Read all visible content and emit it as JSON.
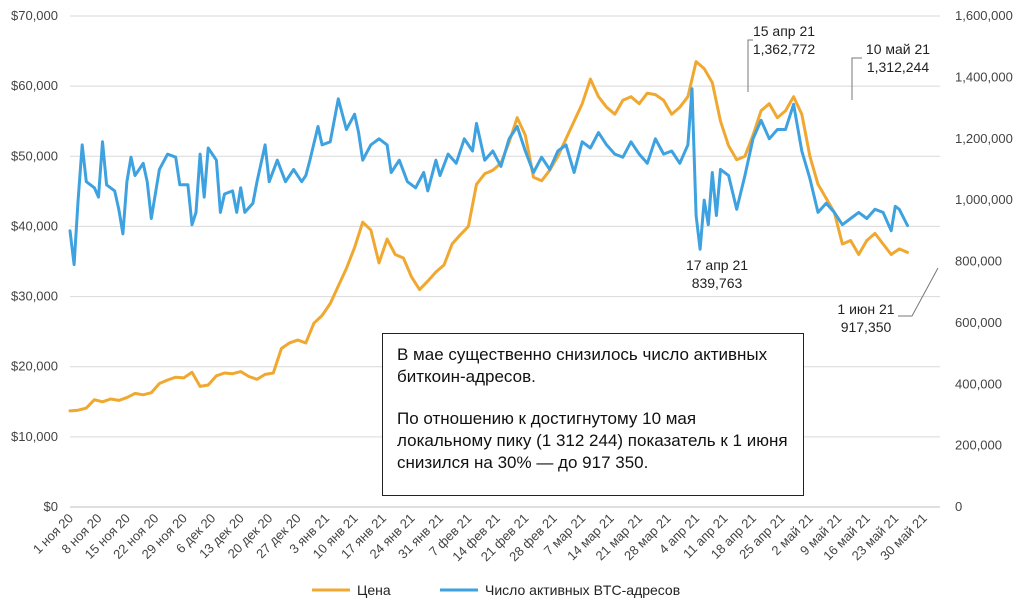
{
  "chart_data": {
    "type": "line",
    "title": "",
    "left_axis": {
      "ylim": [
        0,
        70000
      ],
      "ticks": [
        0,
        10000,
        20000,
        30000,
        40000,
        50000,
        60000,
        70000
      ],
      "tick_labels": [
        "$0",
        "$10,000",
        "$20,000",
        "$30,000",
        "$40,000",
        "$50,000",
        "$60,000",
        "$70,000"
      ]
    },
    "right_axis": {
      "ylim": [
        0,
        1600000
      ],
      "ticks": [
        0,
        200000,
        400000,
        600000,
        800000,
        1000000,
        1200000,
        1400000,
        1600000
      ],
      "tick_labels": [
        "0",
        "200,000",
        "400,000",
        "600,000",
        "800,000",
        "1,000,000",
        "1,200,000",
        "1,400,000",
        "1,600,000"
      ]
    },
    "x_tick_labels": [
      "1 ноя 20",
      "8 ноя 20",
      "15 ноя 20",
      "22 ноя 20",
      "29 ноя 20",
      "6 дек 20",
      "13 дек 20",
      "20 дек 20",
      "27 дек 20",
      "3 янв 21",
      "10 янв 21",
      "17 янв 21",
      "24 янв 21",
      "31 янв 21",
      "7 фев 21",
      "14 фев 21",
      "21 фев 21",
      "28 фев 21",
      "7 мар 21",
      "14 мар 21",
      "21 мар 21",
      "28 мар 21",
      "4 апр 21",
      "11 апр 21",
      "18 апр 21",
      "25 апр 21",
      "2 май 21",
      "9 май 21",
      "16 май 21",
      "23 май 21",
      "30 май 21"
    ],
    "day_step": 7,
    "series": [
      {
        "name": "Цена",
        "axis": "left",
        "color": "#F0A830",
        "points": [
          [
            0,
            13700
          ],
          [
            2,
            13800
          ],
          [
            4,
            14100
          ],
          [
            6,
            15300
          ],
          [
            8,
            15000
          ],
          [
            10,
            15400
          ],
          [
            12,
            15200
          ],
          [
            14,
            15600
          ],
          [
            16,
            16200
          ],
          [
            18,
            16000
          ],
          [
            20,
            16300
          ],
          [
            22,
            17600
          ],
          [
            24,
            18100
          ],
          [
            26,
            18500
          ],
          [
            28,
            18400
          ],
          [
            30,
            19200
          ],
          [
            32,
            17200
          ],
          [
            34,
            17400
          ],
          [
            36,
            18700
          ],
          [
            38,
            19100
          ],
          [
            40,
            19000
          ],
          [
            42,
            19300
          ],
          [
            44,
            18600
          ],
          [
            46,
            18200
          ],
          [
            48,
            18900
          ],
          [
            50,
            19100
          ],
          [
            52,
            22600
          ],
          [
            54,
            23400
          ],
          [
            56,
            23800
          ],
          [
            58,
            23400
          ],
          [
            60,
            26200
          ],
          [
            62,
            27300
          ],
          [
            64,
            29000
          ],
          [
            66,
            31500
          ],
          [
            68,
            34000
          ],
          [
            70,
            37000
          ],
          [
            72,
            40600
          ],
          [
            74,
            39500
          ],
          [
            76,
            34800
          ],
          [
            78,
            38200
          ],
          [
            80,
            36000
          ],
          [
            82,
            35500
          ],
          [
            84,
            32800
          ],
          [
            86,
            31000
          ],
          [
            88,
            32200
          ],
          [
            90,
            33500
          ],
          [
            92,
            34500
          ],
          [
            94,
            37500
          ],
          [
            96,
            38800
          ],
          [
            98,
            40000
          ],
          [
            100,
            46000
          ],
          [
            102,
            47500
          ],
          [
            104,
            48000
          ],
          [
            106,
            49000
          ],
          [
            108,
            52000
          ],
          [
            110,
            55500
          ],
          [
            112,
            53000
          ],
          [
            114,
            47000
          ],
          [
            116,
            46500
          ],
          [
            118,
            48000
          ],
          [
            120,
            50000
          ],
          [
            122,
            52500
          ],
          [
            124,
            55000
          ],
          [
            126,
            57500
          ],
          [
            128,
            61000
          ],
          [
            130,
            58500
          ],
          [
            132,
            57000
          ],
          [
            134,
            56000
          ],
          [
            136,
            58000
          ],
          [
            138,
            58500
          ],
          [
            140,
            57500
          ],
          [
            142,
            59000
          ],
          [
            144,
            58800
          ],
          [
            146,
            58000
          ],
          [
            148,
            56000
          ],
          [
            150,
            57000
          ],
          [
            152,
            58500
          ],
          [
            154,
            63500
          ],
          [
            156,
            62500
          ],
          [
            158,
            60500
          ],
          [
            160,
            55000
          ],
          [
            162,
            51500
          ],
          [
            164,
            49500
          ],
          [
            166,
            50000
          ],
          [
            168,
            53000
          ],
          [
            170,
            56500
          ],
          [
            172,
            57500
          ],
          [
            174,
            55500
          ],
          [
            176,
            56500
          ],
          [
            178,
            58500
          ],
          [
            180,
            56000
          ],
          [
            182,
            50000
          ],
          [
            184,
            46000
          ],
          [
            186,
            44000
          ],
          [
            188,
            42000
          ],
          [
            190,
            37500
          ],
          [
            192,
            38000
          ],
          [
            194,
            36000
          ],
          [
            196,
            38000
          ],
          [
            198,
            39000
          ],
          [
            200,
            37500
          ],
          [
            202,
            36000
          ],
          [
            204,
            36800
          ],
          [
            206,
            36300
          ]
        ]
      },
      {
        "name": "Число активных BTC-адресов",
        "axis": "right",
        "color": "#3EA2E0",
        "points": [
          [
            0,
            900000
          ],
          [
            1,
            790000
          ],
          [
            2,
            1000000
          ],
          [
            3,
            1180000
          ],
          [
            4,
            1060000
          ],
          [
            6,
            1040000
          ],
          [
            7,
            1010000
          ],
          [
            8,
            1190000
          ],
          [
            9,
            1050000
          ],
          [
            11,
            1030000
          ],
          [
            12,
            970000
          ],
          [
            13,
            890000
          ],
          [
            14,
            1060000
          ],
          [
            15,
            1140000
          ],
          [
            16,
            1080000
          ],
          [
            18,
            1120000
          ],
          [
            19,
            1060000
          ],
          [
            20,
            940000
          ],
          [
            22,
            1100000
          ],
          [
            24,
            1150000
          ],
          [
            26,
            1140000
          ],
          [
            27,
            1050000
          ],
          [
            29,
            1050000
          ],
          [
            30,
            920000
          ],
          [
            31,
            960000
          ],
          [
            32,
            1150000
          ],
          [
            33,
            1010000
          ],
          [
            34,
            1170000
          ],
          [
            36,
            1130000
          ],
          [
            37,
            960000
          ],
          [
            38,
            1020000
          ],
          [
            40,
            1030000
          ],
          [
            41,
            960000
          ],
          [
            42,
            1040000
          ],
          [
            43,
            960000
          ],
          [
            45,
            990000
          ],
          [
            46,
            1060000
          ],
          [
            48,
            1180000
          ],
          [
            49,
            1060000
          ],
          [
            51,
            1130000
          ],
          [
            53,
            1060000
          ],
          [
            55,
            1100000
          ],
          [
            57,
            1060000
          ],
          [
            58,
            1080000
          ],
          [
            59,
            1130000
          ],
          [
            61,
            1240000
          ],
          [
            62,
            1180000
          ],
          [
            64,
            1190000
          ],
          [
            66,
            1330000
          ],
          [
            68,
            1230000
          ],
          [
            70,
            1280000
          ],
          [
            71,
            1220000
          ],
          [
            72,
            1130000
          ],
          [
            74,
            1180000
          ],
          [
            76,
            1200000
          ],
          [
            78,
            1180000
          ],
          [
            79,
            1090000
          ],
          [
            81,
            1130000
          ],
          [
            83,
            1060000
          ],
          [
            85,
            1040000
          ],
          [
            87,
            1090000
          ],
          [
            88,
            1030000
          ],
          [
            90,
            1130000
          ],
          [
            91,
            1080000
          ],
          [
            93,
            1150000
          ],
          [
            95,
            1120000
          ],
          [
            97,
            1200000
          ],
          [
            99,
            1160000
          ],
          [
            100,
            1250000
          ],
          [
            102,
            1130000
          ],
          [
            104,
            1160000
          ],
          [
            106,
            1110000
          ],
          [
            108,
            1200000
          ],
          [
            110,
            1240000
          ],
          [
            112,
            1160000
          ],
          [
            114,
            1090000
          ],
          [
            116,
            1140000
          ],
          [
            118,
            1100000
          ],
          [
            120,
            1160000
          ],
          [
            122,
            1180000
          ],
          [
            124,
            1090000
          ],
          [
            126,
            1190000
          ],
          [
            128,
            1170000
          ],
          [
            130,
            1220000
          ],
          [
            132,
            1180000
          ],
          [
            134,
            1150000
          ],
          [
            136,
            1140000
          ],
          [
            138,
            1190000
          ],
          [
            140,
            1150000
          ],
          [
            142,
            1120000
          ],
          [
            144,
            1200000
          ],
          [
            146,
            1150000
          ],
          [
            148,
            1160000
          ],
          [
            150,
            1120000
          ],
          [
            152,
            1180000
          ],
          [
            153,
            1362772
          ],
          [
            154,
            950000
          ],
          [
            155,
            839763
          ],
          [
            156,
            1000000
          ],
          [
            157,
            920000
          ],
          [
            158,
            1090000
          ],
          [
            159,
            950000
          ],
          [
            160,
            1100000
          ],
          [
            162,
            1080000
          ],
          [
            164,
            970000
          ],
          [
            166,
            1080000
          ],
          [
            168,
            1200000
          ],
          [
            170,
            1260000
          ],
          [
            172,
            1200000
          ],
          [
            174,
            1230000
          ],
          [
            176,
            1230000
          ],
          [
            178,
            1312244
          ],
          [
            180,
            1160000
          ],
          [
            182,
            1070000
          ],
          [
            184,
            960000
          ],
          [
            186,
            990000
          ],
          [
            188,
            960000
          ],
          [
            190,
            920000
          ],
          [
            192,
            940000
          ],
          [
            194,
            960000
          ],
          [
            196,
            940000
          ],
          [
            198,
            970000
          ],
          [
            200,
            960000
          ],
          [
            202,
            900000
          ],
          [
            203,
            980000
          ],
          [
            204,
            970000
          ],
          [
            206,
            917350
          ]
        ]
      }
    ],
    "annotations": [
      {
        "label": "15 апр 21",
        "value_label": "1,362,772",
        "day": 153,
        "value": 1362772
      },
      {
        "label": "17 апр 21",
        "value_label": "839,763",
        "day": 155,
        "value": 839763
      },
      {
        "label": "10 май 21",
        "value_label": "1,312,244",
        "day": 178,
        "value": 1312244
      },
      {
        "label": "1 июн 21",
        "value_label": "917,350",
        "day": 206,
        "value": 917350
      }
    ],
    "legend": [
      "Цена",
      "Число активных BTC-адресов"
    ],
    "legend_position": "bottom-center"
  },
  "callout": {
    "paragraph1": "В мае существенно снизилось число активных биткоин-адресов.",
    "paragraph2": "По отношению к достигнутому 10 мая локальному пику (1 312 244) показатель к 1 июня снизился на 30% — до 917 350."
  }
}
